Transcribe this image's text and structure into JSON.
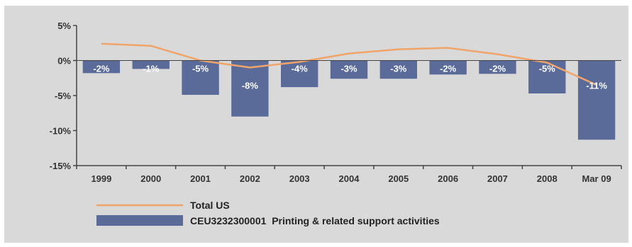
{
  "chart_data": {
    "type": "bar",
    "categories": [
      "1999",
      "2000",
      "2001",
      "2002",
      "2003",
      "2004",
      "2005",
      "2006",
      "2007",
      "2008",
      "Mar 09"
    ],
    "series": [
      {
        "name": "CEU3232300001  Printing & related support activities",
        "type": "bar",
        "color": "#5a6b9a",
        "values": [
          -1.8,
          -1.2,
          -4.9,
          -8.0,
          -3.8,
          -2.6,
          -2.6,
          -2.0,
          -1.9,
          -4.7,
          -11.3
        ],
        "labels": [
          "-2%",
          "-1%",
          "-5%",
          "-8%",
          "-4%",
          "-3%",
          "-3%",
          "-2%",
          "-2%",
          "-5%",
          "-11%"
        ]
      },
      {
        "name": "Total US",
        "type": "line",
        "color": "#f0a46a",
        "values": [
          2.4,
          2.1,
          0.0,
          -1.0,
          -0.2,
          1.0,
          1.6,
          1.8,
          0.9,
          -0.3,
          -3.5
        ]
      }
    ],
    "ylim": [
      -15,
      5
    ],
    "yticks": [
      5,
      0,
      -5,
      -10,
      -15
    ],
    "ytick_labels": [
      "5%",
      "0%",
      "-5%",
      "-10%",
      "-15%"
    ],
    "grid": false,
    "legend_position": "bottom-left"
  }
}
